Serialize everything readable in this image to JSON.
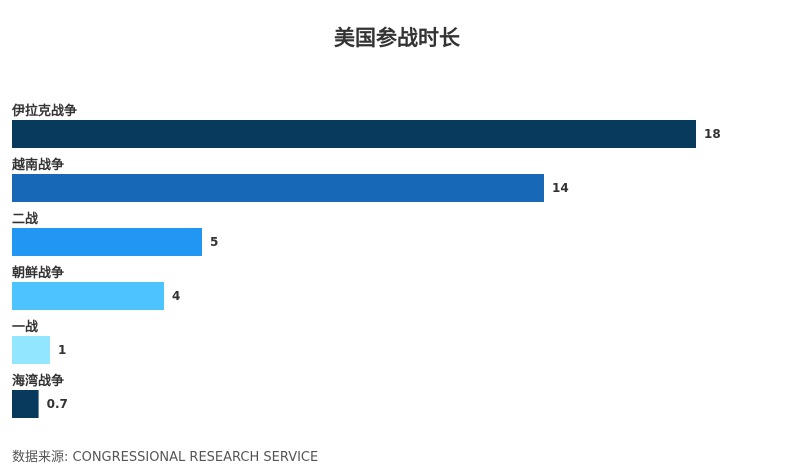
{
  "chart_data": {
    "type": "bar",
    "orientation": "horizontal",
    "title": "美国参战时长",
    "categories": [
      "伊拉克战争",
      "越南战争",
      "二战",
      "朝鲜战争",
      "一战",
      "海湾战争"
    ],
    "values": [
      18,
      14,
      5,
      4,
      1,
      0.7
    ],
    "value_labels": [
      "18",
      "14",
      "5",
      "4",
      "1",
      "0.7"
    ],
    "colors": [
      "#083a5e",
      "#1769b8",
      "#2196f3",
      "#4dc3ff",
      "#93e6ff",
      "#083a5e"
    ],
    "xlim": [
      0,
      18
    ],
    "grid": false,
    "legend": "none"
  },
  "source": "数据来源: CONGRESSIONAL RESEARCH SERVICE"
}
